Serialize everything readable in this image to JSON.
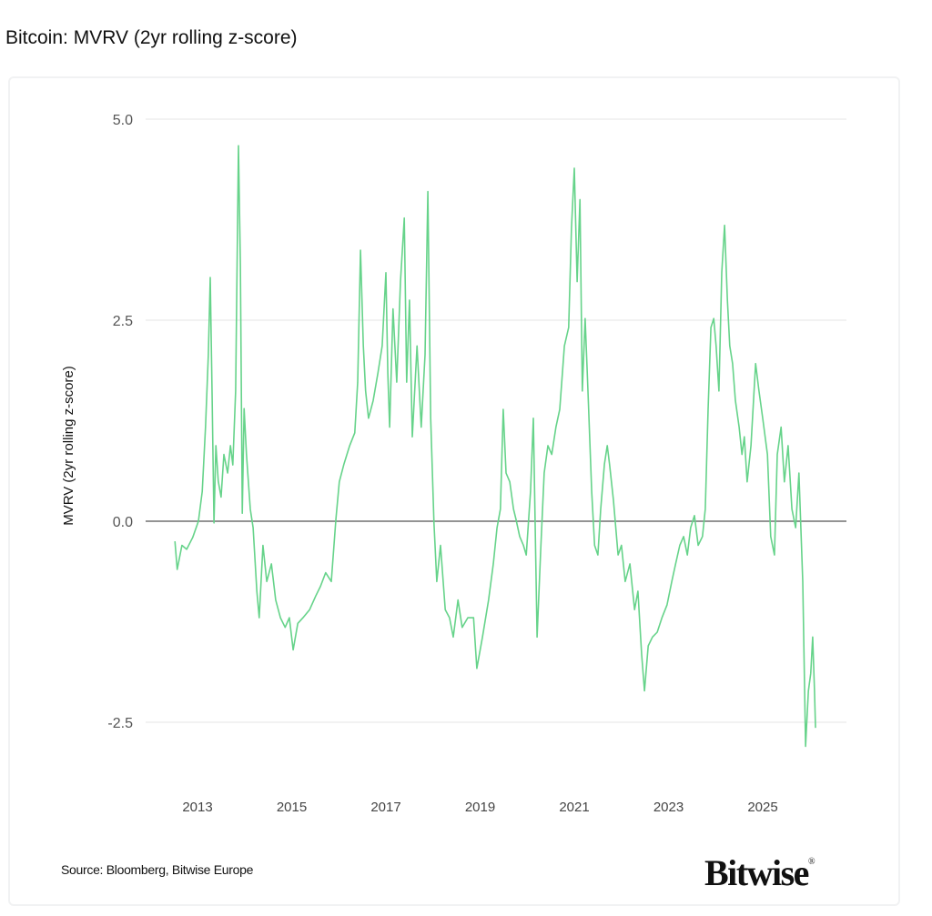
{
  "title": "Bitcoin: MVRV (2yr rolling z-score)",
  "source": "Source: Bloomberg, Bitwise Europe",
  "logo": "Bitwise",
  "chart_data": {
    "type": "line",
    "title": "Bitcoin: MVRV (2yr rolling z-score)",
    "xlabel": "",
    "ylabel": "MVRV (2yr rolling z-score)",
    "x_ticks": [
      "2013",
      "2015",
      "2017",
      "2019",
      "2021",
      "2023",
      "2025"
    ],
    "y_ticks": [
      "5.0",
      "2.5",
      "0.0",
      "-2.5"
    ],
    "ylim": [
      -3.2,
      5.0
    ],
    "xlim": [
      2011.6,
      2026.8
    ],
    "grid": true,
    "legend": "none",
    "line_color": "#66d38a",
    "zero_line_color": "#555555",
    "series": [
      {
        "x": [
          2012.52,
          2012.57,
          2012.67,
          2012.77,
          2012.9,
          2013.02,
          2013.1,
          2013.17,
          2013.23,
          2013.27,
          2013.31,
          2013.35,
          2013.39,
          2013.44,
          2013.5,
          2013.56,
          2013.64,
          2013.7,
          2013.75,
          2013.81,
          2013.87,
          2013.91,
          2013.95,
          2013.99,
          2014.04,
          2014.12,
          2014.18,
          2014.26,
          2014.31,
          2014.39,
          2014.47,
          2014.57,
          2014.66,
          2014.76,
          2014.86,
          2014.95,
          2015.03,
          2015.13,
          2015.24,
          2015.38,
          2015.51,
          2015.61,
          2015.72,
          2015.84,
          2015.94,
          2016.01,
          2016.11,
          2016.23,
          2016.34,
          2016.4,
          2016.46,
          2016.52,
          2016.57,
          2016.63,
          2016.73,
          2016.83,
          2016.92,
          2017.0,
          2017.04,
          2017.08,
          2017.15,
          2017.23,
          2017.31,
          2017.39,
          2017.44,
          2017.5,
          2017.56,
          2017.66,
          2017.75,
          2017.83,
          2017.89,
          2017.95,
          2018.02,
          2018.08,
          2018.16,
          2018.26,
          2018.35,
          2018.43,
          2018.53,
          2018.62,
          2018.74,
          2018.86,
          2018.93,
          2019.05,
          2019.18,
          2019.28,
          2019.36,
          2019.43,
          2019.49,
          2019.55,
          2019.63,
          2019.71,
          2019.76,
          2019.84,
          2019.92,
          2019.98,
          2020.07,
          2020.13,
          2020.21,
          2020.29,
          2020.36,
          2020.44,
          2020.52,
          2020.61,
          2020.69,
          2020.79,
          2020.88,
          2020.94,
          2021.0,
          2021.06,
          2021.12,
          2021.17,
          2021.23,
          2021.29,
          2021.37,
          2021.43,
          2021.5,
          2021.56,
          2021.64,
          2021.7,
          2021.75,
          2021.83,
          2021.93,
          2022.0,
          2022.08,
          2022.18,
          2022.28,
          2022.35,
          2022.43,
          2022.49,
          2022.57,
          2022.66,
          2022.76,
          2022.86,
          2022.97,
          2023.07,
          2023.15,
          2023.24,
          2023.32,
          2023.4,
          2023.47,
          2023.55,
          2023.63,
          2023.72,
          2023.78,
          2023.84,
          2023.9,
          2023.96,
          2024.01,
          2024.07,
          2024.13,
          2024.19,
          2024.25,
          2024.3,
          2024.36,
          2024.42,
          2024.5,
          2024.56,
          2024.61,
          2024.67,
          2024.75,
          2024.85,
          2024.92,
          2025.0,
          2025.1,
          2025.17,
          2025.25,
          2025.31,
          2025.39,
          2025.46,
          2025.54,
          2025.62,
          2025.7,
          2025.77,
          2025.85,
          2025.91,
          2025.93,
          2025.97,
          2026.02,
          2026.06,
          2026.1,
          2026.12
        ],
        "y": [
          -0.25,
          -0.6,
          -0.3,
          -0.35,
          -0.2,
          0.0,
          0.37,
          1.17,
          2.07,
          3.03,
          1.6,
          -0.02,
          0.94,
          0.5,
          0.3,
          0.83,
          0.6,
          0.94,
          0.7,
          1.62,
          4.67,
          3.2,
          0.1,
          1.4,
          0.83,
          0.15,
          -0.08,
          -0.87,
          -1.2,
          -0.3,
          -0.75,
          -0.53,
          -0.98,
          -1.2,
          -1.32,
          -1.2,
          -1.6,
          -1.27,
          -1.2,
          -1.1,
          -0.93,
          -0.81,
          -0.64,
          -0.75,
          0.03,
          0.49,
          0.71,
          0.94,
          1.1,
          1.73,
          3.37,
          2.18,
          1.62,
          1.28,
          1.5,
          1.84,
          2.18,
          3.09,
          1.84,
          1.17,
          2.64,
          1.73,
          2.98,
          3.77,
          1.73,
          2.75,
          1.05,
          2.18,
          1.17,
          2.07,
          4.1,
          1.28,
          -0.02,
          -0.75,
          -0.3,
          -1.1,
          -1.2,
          -1.44,
          -0.98,
          -1.32,
          -1.2,
          -1.2,
          -1.83,
          -1.44,
          -0.98,
          -0.53,
          -0.08,
          0.15,
          1.39,
          0.6,
          0.49,
          0.15,
          0.03,
          -0.19,
          -0.3,
          -0.42,
          0.37,
          1.28,
          -1.44,
          -0.3,
          0.6,
          0.94,
          0.83,
          1.17,
          1.39,
          2.18,
          2.41,
          3.65,
          4.39,
          2.98,
          4.0,
          1.62,
          2.52,
          1.62,
          0.37,
          -0.3,
          -0.42,
          0.15,
          0.71,
          0.94,
          0.7,
          0.26,
          -0.42,
          -0.3,
          -0.75,
          -0.53,
          -1.1,
          -0.87,
          -1.66,
          -2.11,
          -1.55,
          -1.44,
          -1.38,
          -1.2,
          -1.04,
          -0.75,
          -0.53,
          -0.3,
          -0.19,
          -0.42,
          -0.08,
          0.07,
          -0.3,
          -0.19,
          0.15,
          1.39,
          2.41,
          2.52,
          2.18,
          1.62,
          3.09,
          3.68,
          2.75,
          2.18,
          1.96,
          1.5,
          1.17,
          0.83,
          1.05,
          0.49,
          0.94,
          1.96,
          1.62,
          1.28,
          0.83,
          -0.19,
          -0.42,
          0.83,
          1.17,
          0.49,
          0.94,
          0.15,
          -0.08,
          0.6,
          -0.75,
          -2.8,
          -2.57,
          -2.11,
          -1.89,
          -1.44,
          -2.11,
          -2.57
        ]
      }
    ]
  }
}
